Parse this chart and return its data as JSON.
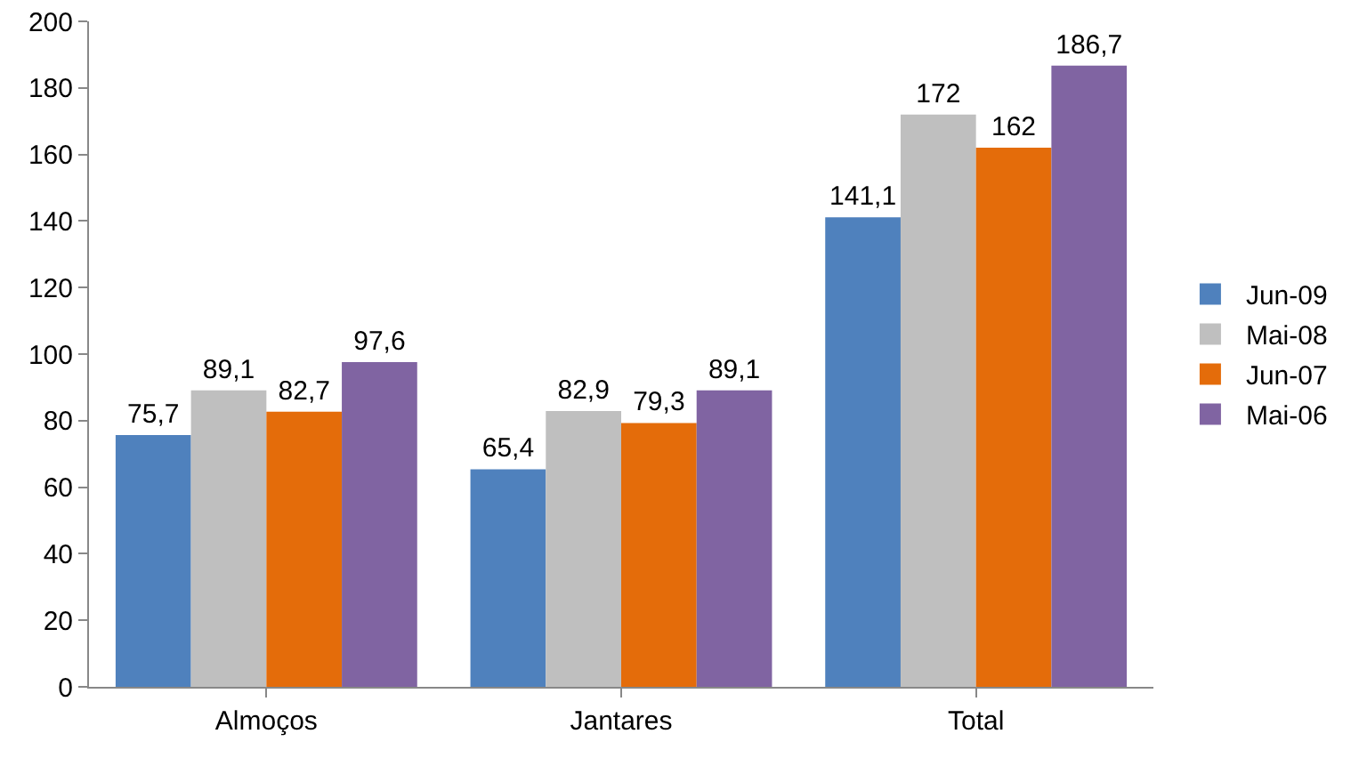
{
  "chart_data": {
    "type": "bar",
    "categories": [
      "Almoços",
      "Jantares",
      "Total"
    ],
    "series": [
      {
        "name": "Jun-09",
        "color": "#4f81bd",
        "values": [
          75.7,
          65.4,
          141.1
        ],
        "value_labels": [
          "75,7",
          "65,4",
          "141,1"
        ]
      },
      {
        "name": "Mai-08",
        "color": "#bfbfbf",
        "values": [
          89.1,
          82.9,
          172
        ],
        "value_labels": [
          "89,1",
          "82,9",
          "172"
        ]
      },
      {
        "name": "Jun-07",
        "color": "#e46c0a",
        "values": [
          82.7,
          79.3,
          162
        ],
        "value_labels": [
          "82,7",
          "79,3",
          "162"
        ]
      },
      {
        "name": "Mai-06",
        "color": "#8064a2",
        "values": [
          97.6,
          89.1,
          186.7
        ],
        "value_labels": [
          "97,6",
          "89,1",
          "186,7"
        ]
      }
    ],
    "ylim": [
      0,
      200
    ],
    "yticks": [
      0,
      20,
      40,
      60,
      80,
      100,
      120,
      140,
      160,
      180,
      200
    ],
    "grid": false,
    "legend": "right"
  }
}
